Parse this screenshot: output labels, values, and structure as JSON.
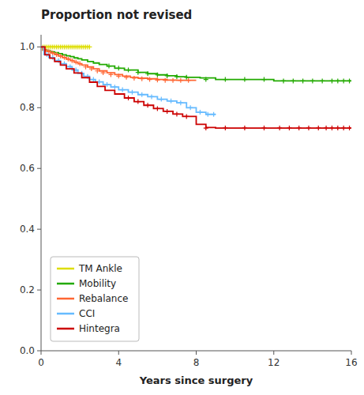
{
  "chart_data": {
    "type": "step",
    "title": "Proportion not revised",
    "x_label": "Years since surgery",
    "xlim": [
      0,
      16
    ],
    "ylim": [
      0.0,
      1.04
    ],
    "xticks": [
      0,
      4,
      8,
      12,
      16
    ],
    "yticks": [
      {
        "value": 0.0,
        "label": "0.0"
      },
      0.2,
      0.4,
      0.6,
      0.8,
      {
        "value": 1.0,
        "label": "1.0"
      }
    ],
    "grid": false,
    "legend": "lower left",
    "series": [
      {
        "name": "TM Ankle",
        "color": "#dddd00",
        "x": [
          0,
          0.5,
          1.0,
          1.5,
          2.0,
          2.5
        ],
        "values": [
          1.0,
          1.0,
          1.0,
          1.0,
          1.0,
          1.0
        ],
        "censor_x": [
          0.1,
          0.2,
          0.3,
          0.4,
          0.5,
          0.6,
          0.7,
          0.8,
          0.9,
          1.0,
          1.1,
          1.2,
          1.3,
          1.4,
          1.5,
          1.6,
          1.7,
          1.8,
          1.9,
          2.0,
          2.1,
          2.2,
          2.3,
          2.4,
          2.5
        ],
        "censor_values": [
          1.0,
          1.0,
          1.0,
          1.0,
          1.0,
          1.0,
          1.0,
          1.0,
          1.0,
          1.0,
          1.0,
          1.0,
          1.0,
          1.0,
          1.0,
          1.0,
          1.0,
          1.0,
          1.0,
          1.0,
          1.0,
          1.0,
          1.0,
          1.0,
          1.0
        ]
      },
      {
        "name": "Mobility",
        "color": "#22aa00",
        "x": [
          0,
          0.1,
          0.3,
          0.5,
          0.7,
          0.9,
          1.1,
          1.3,
          1.5,
          1.7,
          1.9,
          2.1,
          2.4,
          2.7,
          3.0,
          3.4,
          3.8,
          4.3,
          5.0,
          5.5,
          6.0,
          6.5,
          7.0,
          7.5,
          8.2,
          9.0,
          10.0,
          11.0,
          12.0,
          13.5,
          16.0
        ],
        "values": [
          1.0,
          0.99,
          0.987,
          0.984,
          0.981,
          0.978,
          0.974,
          0.971,
          0.968,
          0.964,
          0.961,
          0.957,
          0.952,
          0.947,
          0.942,
          0.937,
          0.93,
          0.924,
          0.916,
          0.912,
          0.908,
          0.905,
          0.902,
          0.9,
          0.898,
          0.893,
          0.893,
          0.893,
          0.888,
          0.888,
          0.888
        ],
        "censor_x": [
          3.5,
          4.0,
          4.5,
          5.0,
          5.5,
          6.0,
          6.5,
          7.0,
          7.5,
          8.5,
          9.5,
          10.5,
          11.5,
          12.5,
          13.0,
          13.5,
          14.0,
          14.5,
          15.0,
          15.3,
          15.6,
          15.9
        ],
        "censor_values": [
          0.937,
          0.93,
          0.924,
          0.916,
          0.912,
          0.908,
          0.905,
          0.902,
          0.9,
          0.893,
          0.893,
          0.893,
          0.893,
          0.888,
          0.888,
          0.888,
          0.888,
          0.888,
          0.888,
          0.888,
          0.888,
          0.888
        ]
      },
      {
        "name": "Rebalance",
        "color": "#ff6633",
        "x": [
          0,
          0.1,
          0.3,
          0.5,
          0.7,
          0.9,
          1.1,
          1.3,
          1.5,
          1.7,
          1.9,
          2.1,
          2.4,
          2.7,
          3.0,
          3.4,
          3.8,
          4.2,
          4.6,
          5.0,
          5.5,
          6.0,
          6.5,
          7.0,
          7.5,
          8.0
        ],
        "values": [
          1.0,
          0.99,
          0.985,
          0.98,
          0.975,
          0.97,
          0.965,
          0.96,
          0.955,
          0.95,
          0.945,
          0.94,
          0.934,
          0.928,
          0.921,
          0.915,
          0.909,
          0.904,
          0.9,
          0.897,
          0.895,
          0.893,
          0.891,
          0.89,
          0.89,
          0.89
        ],
        "censor_x": [
          0.2,
          0.4,
          0.6,
          0.8,
          1.0,
          1.2,
          1.4,
          1.6,
          1.8,
          2.0,
          2.3,
          2.6,
          2.9,
          3.2,
          3.6,
          4.0,
          4.4,
          4.8,
          5.2,
          5.6,
          6.0,
          6.4,
          6.8,
          7.2,
          7.6
        ],
        "censor_values": [
          0.99,
          0.985,
          0.98,
          0.975,
          0.97,
          0.965,
          0.96,
          0.955,
          0.95,
          0.945,
          0.934,
          0.928,
          0.921,
          0.915,
          0.909,
          0.904,
          0.9,
          0.897,
          0.895,
          0.893,
          0.891,
          0.89,
          0.89,
          0.89,
          0.89
        ]
      },
      {
        "name": "CCI",
        "color": "#66bbff",
        "x": [
          0,
          0.15,
          0.4,
          0.7,
          1.0,
          1.3,
          1.6,
          1.9,
          2.2,
          2.5,
          2.8,
          3.2,
          3.6,
          4.0,
          4.5,
          5.0,
          5.5,
          6.0,
          6.5,
          7.0,
          7.5,
          8.0,
          8.5,
          9.0
        ],
        "values": [
          1.0,
          0.975,
          0.965,
          0.955,
          0.945,
          0.935,
          0.924,
          0.913,
          0.903,
          0.893,
          0.885,
          0.876,
          0.868,
          0.859,
          0.851,
          0.843,
          0.836,
          0.828,
          0.822,
          0.816,
          0.8,
          0.785,
          0.778,
          0.778
        ],
        "censor_x": [
          0.3,
          0.6,
          0.9,
          1.2,
          1.5,
          1.8,
          2.1,
          2.4,
          2.7,
          3.0,
          3.4,
          3.8,
          4.2,
          4.7,
          5.2,
          5.7,
          6.2,
          6.7,
          7.2,
          7.7,
          8.2,
          8.6,
          8.9
        ],
        "censor_values": [
          0.975,
          0.965,
          0.955,
          0.945,
          0.935,
          0.924,
          0.913,
          0.903,
          0.893,
          0.885,
          0.876,
          0.868,
          0.859,
          0.851,
          0.843,
          0.836,
          0.828,
          0.822,
          0.816,
          0.8,
          0.785,
          0.778,
          0.778
        ]
      },
      {
        "name": "Hintegra",
        "color": "#cc0000",
        "x": [
          0,
          0.2,
          0.45,
          0.7,
          1.0,
          1.3,
          1.7,
          2.1,
          2.5,
          2.9,
          3.3,
          3.8,
          4.3,
          4.8,
          5.3,
          5.8,
          6.3,
          6.8,
          7.3,
          8.0,
          8.5,
          9.0,
          10.0,
          11.0,
          12.0,
          13.0,
          14.0,
          15.0,
          16.0
        ],
        "values": [
          1.0,
          0.974,
          0.963,
          0.952,
          0.94,
          0.928,
          0.914,
          0.899,
          0.884,
          0.87,
          0.857,
          0.845,
          0.832,
          0.82,
          0.808,
          0.797,
          0.788,
          0.779,
          0.771,
          0.745,
          0.735,
          0.733,
          0.733,
          0.733,
          0.733,
          0.733,
          0.733,
          0.733,
          0.733
        ],
        "censor_x": [
          4.5,
          5.0,
          5.5,
          6.0,
          6.5,
          7.0,
          7.5,
          8.5,
          9.5,
          10.5,
          11.5,
          12.3,
          12.8,
          13.3,
          13.8,
          14.3,
          14.7,
          15.0,
          15.3,
          15.6,
          15.9
        ],
        "censor_values": [
          0.832,
          0.82,
          0.808,
          0.797,
          0.788,
          0.779,
          0.771,
          0.733,
          0.733,
          0.733,
          0.733,
          0.733,
          0.733,
          0.733,
          0.733,
          0.733,
          0.733,
          0.733,
          0.733,
          0.733,
          0.733
        ]
      }
    ]
  }
}
